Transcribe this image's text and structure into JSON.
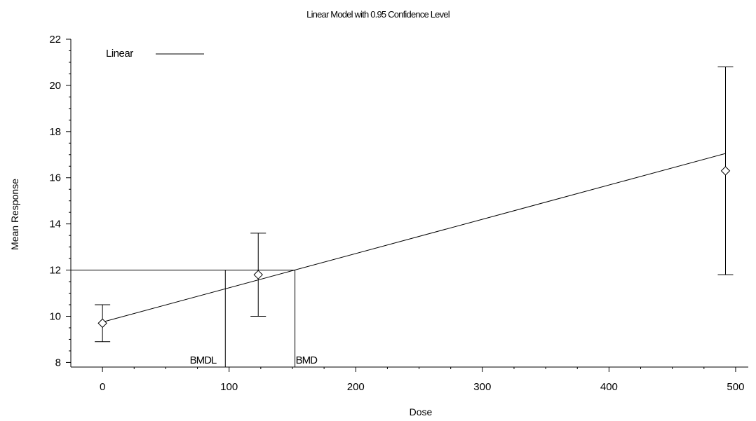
{
  "chart_data": {
    "type": "line",
    "title": "Linear Model with 0.95 Confidence Level",
    "xlabel": "Dose",
    "ylabel": "Mean Response",
    "xlim": [
      -25,
      510
    ],
    "ylim": [
      7.8,
      22
    ],
    "x_ticks": [
      0,
      100,
      200,
      300,
      400,
      500
    ],
    "y_ticks": [
      8,
      10,
      12,
      14,
      16,
      18,
      20,
      22
    ],
    "grid": false,
    "legend": {
      "position": "top-left",
      "entries": [
        {
          "name": "Linear",
          "style": "solid-line"
        }
      ]
    },
    "observed": [
      {
        "dose": 0,
        "mean": 9.7,
        "lower": 8.9,
        "upper": 10.5
      },
      {
        "dose": 123,
        "mean": 11.8,
        "lower": 10.0,
        "upper": 13.6
      },
      {
        "dose": 492,
        "mean": 16.3,
        "lower": 11.8,
        "upper": 20.8
      }
    ],
    "series": [
      {
        "name": "Linear",
        "x": [
          0,
          492
        ],
        "y": [
          9.75,
          17.05
        ]
      }
    ],
    "bmr_response": 12.0,
    "bmdl": {
      "label": "BMDL",
      "dose": 97
    },
    "bmd": {
      "label": "BMD",
      "dose": 152
    }
  }
}
